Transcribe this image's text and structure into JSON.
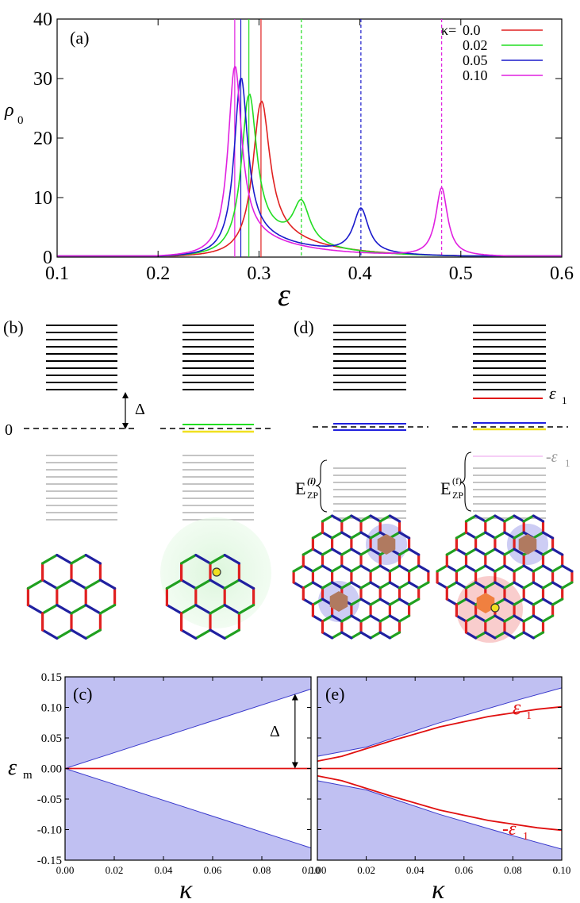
{
  "panel_a": {
    "label": "(a)",
    "ylabel": "ρ",
    "ylabel_sub": "0",
    "xlabel": "ε",
    "legend": {
      "title_prefix": "κ=",
      "entries": [
        "0.0",
        "0.02",
        "0.05",
        "0.10"
      ]
    }
  },
  "panel_b": {
    "label": "(b)",
    "zero_label": "0",
    "gap_label": "Δ"
  },
  "panel_d": {
    "label": "(d)",
    "eps1_label": "ε",
    "eps1_sub": "1",
    "neg_eps1_label": "-ε",
    "neg_eps1_sub": "1",
    "ezp_i_main": "E",
    "ezp_i_sup": "(i)",
    "ezp_i_sub": "ZP",
    "ezp_f_main": "E",
    "ezp_f_sup": "(f)",
    "ezp_f_sub": "ZP"
  },
  "panel_c": {
    "label": "(c)",
    "ylabel": "ε",
    "ylabel_sub": "m",
    "xlabel": "κ",
    "gap_label": "Δ"
  },
  "panel_e": {
    "label": "(e)",
    "xlabel": "κ",
    "eps1_label": "ε",
    "eps1_sub": "1",
    "neg_eps1_label": "-ε",
    "neg_eps1_sub": "1"
  },
  "colors": {
    "k0": "#e02020",
    "k002": "#22dd22",
    "k005": "#1a1acc",
    "k010": "#e020e0",
    "band_fill": "#c0c0f2",
    "band_edge": "#3a3acc",
    "red": "#e01010",
    "gray_level": "#c4c4c4",
    "yellow": "#f0e020",
    "green_level": "#22dd22",
    "blue_level": "#2020dd"
  },
  "chart_data": [
    {
      "type": "line",
      "panel": "a",
      "xlim": [
        0.1,
        0.6
      ],
      "ylim": [
        0,
        40
      ],
      "xticks": [
        0.1,
        0.2,
        0.3,
        0.4,
        0.5,
        0.6
      ],
      "xtick_labels": [
        "0.1",
        "0.2",
        "0.3",
        "0.4",
        "0.5",
        "0.6"
      ],
      "yticks": [
        0,
        10,
        20,
        30,
        40
      ],
      "ytick_labels": [
        "0",
        "10",
        "20",
        "30",
        "40"
      ],
      "series": [
        {
          "name": "0.0",
          "peaks": [
            [
              0.302,
              26.0,
              0.01
            ]
          ],
          "vlines_solid": [
            0.302
          ],
          "vlines_dashed": []
        },
        {
          "name": "0.02",
          "peaks": [
            [
              0.29,
              27.0,
              0.009
            ],
            [
              0.342,
              7.0,
              0.01
            ]
          ],
          "vlines_solid": [
            0.29
          ],
          "vlines_dashed": [
            0.342
          ]
        },
        {
          "name": "0.05",
          "peaks": [
            [
              0.282,
              30.0,
              0.008
            ],
            [
              0.401,
              7.5,
              0.009
            ]
          ],
          "vlines_solid": [
            0.282
          ],
          "vlines_dashed": [
            0.401
          ]
        },
        {
          "name": "0.10",
          "peaks": [
            [
              0.276,
              32.0,
              0.008
            ],
            [
              0.481,
              11.5,
              0.007
            ]
          ],
          "vlines_solid": [
            0.276
          ],
          "vlines_dashed": [
            0.481
          ]
        }
      ]
    },
    {
      "type": "area",
      "panel": "c",
      "xlim": [
        0.0,
        0.1
      ],
      "ylim": [
        -0.15,
        0.15
      ],
      "xticks": [
        0.0,
        0.02,
        0.04,
        0.06,
        0.08,
        0.1
      ],
      "xtick_labels": [
        "0.00",
        "0.02",
        "0.04",
        "0.06",
        "0.08",
        "0.10"
      ],
      "yticks": [
        -0.15,
        -0.1,
        -0.05,
        0.0,
        0.05,
        0.1,
        0.15
      ],
      "ytick_labels": [
        "-0.15",
        "-0.10",
        "-0.05",
        "0.00",
        "0.05",
        "0.10",
        "0.15"
      ],
      "band_edge_upper": [
        [
          0.0,
          0.0
        ],
        [
          0.1,
          0.13
        ]
      ],
      "band_edge_lower": [
        [
          0.0,
          0.0
        ],
        [
          0.1,
          -0.13
        ]
      ],
      "zero_mode": [
        [
          0.0,
          0.0
        ],
        [
          0.1,
          0.0
        ]
      ],
      "gap_arrow": [
        0.0935,
        0.0,
        0.122
      ]
    },
    {
      "type": "area",
      "panel": "e",
      "xlim": [
        0.0,
        0.1
      ],
      "ylim": [
        -0.15,
        0.15
      ],
      "xticks": [
        0.0,
        0.02,
        0.04,
        0.06,
        0.08,
        0.1
      ],
      "xtick_labels": [
        "0.00",
        "0.02",
        "0.04",
        "0.06",
        "0.08",
        "0.10"
      ],
      "band_edge_upper": [
        [
          0.0,
          0.02
        ],
        [
          0.02,
          0.035
        ],
        [
          0.05,
          0.075
        ],
        [
          0.08,
          0.11
        ],
        [
          0.1,
          0.132
        ]
      ],
      "band_edge_lower": [
        [
          0.0,
          -0.02
        ],
        [
          0.02,
          -0.035
        ],
        [
          0.05,
          -0.075
        ],
        [
          0.08,
          -0.11
        ],
        [
          0.1,
          -0.132
        ]
      ],
      "eps1_upper": [
        [
          0.0,
          0.012
        ],
        [
          0.01,
          0.02
        ],
        [
          0.03,
          0.045
        ],
        [
          0.05,
          0.068
        ],
        [
          0.07,
          0.085
        ],
        [
          0.09,
          0.097
        ],
        [
          0.1,
          0.101
        ]
      ],
      "eps1_lower": [
        [
          0.0,
          -0.012
        ],
        [
          0.01,
          -0.02
        ],
        [
          0.03,
          -0.045
        ],
        [
          0.05,
          -0.068
        ],
        [
          0.07,
          -0.085
        ],
        [
          0.09,
          -0.097
        ],
        [
          0.1,
          -0.101
        ]
      ],
      "zero_mode": [
        [
          0.0,
          0.0
        ],
        [
          0.1,
          0.0
        ]
      ]
    }
  ]
}
